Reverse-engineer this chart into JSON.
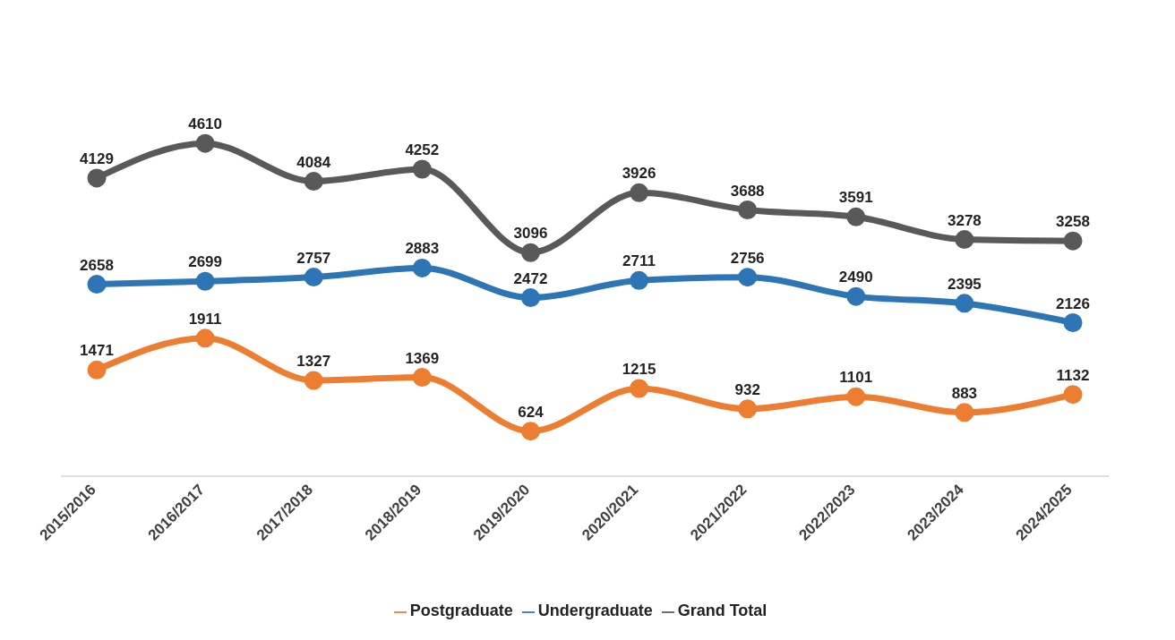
{
  "chart_data": {
    "type": "line",
    "categories": [
      "2015/2016",
      "2016/2017",
      "2017/2018",
      "2018/2019",
      "2019/2020",
      "2020/2021",
      "2021/2022",
      "2022/2023",
      "2023/2024",
      "2024/2025"
    ],
    "series": [
      {
        "name": "Postgraduate",
        "color": "#ed7d31",
        "values": [
          1471,
          1911,
          1327,
          1369,
          624,
          1215,
          932,
          1101,
          883,
          1132
        ]
      },
      {
        "name": "Undergraduate",
        "color": "#2e75b6",
        "values": [
          2658,
          2699,
          2757,
          2883,
          2472,
          2711,
          2756,
          2490,
          2395,
          2126
        ]
      },
      {
        "name": "Grand Total",
        "color": "#595959",
        "values": [
          4129,
          4610,
          4084,
          4252,
          3096,
          3926,
          3688,
          3591,
          3278,
          3258
        ]
      }
    ],
    "tick_labels": "x",
    "data_labels": true,
    "legend": "bottom",
    "marker": "circle",
    "line_style": "solid"
  }
}
